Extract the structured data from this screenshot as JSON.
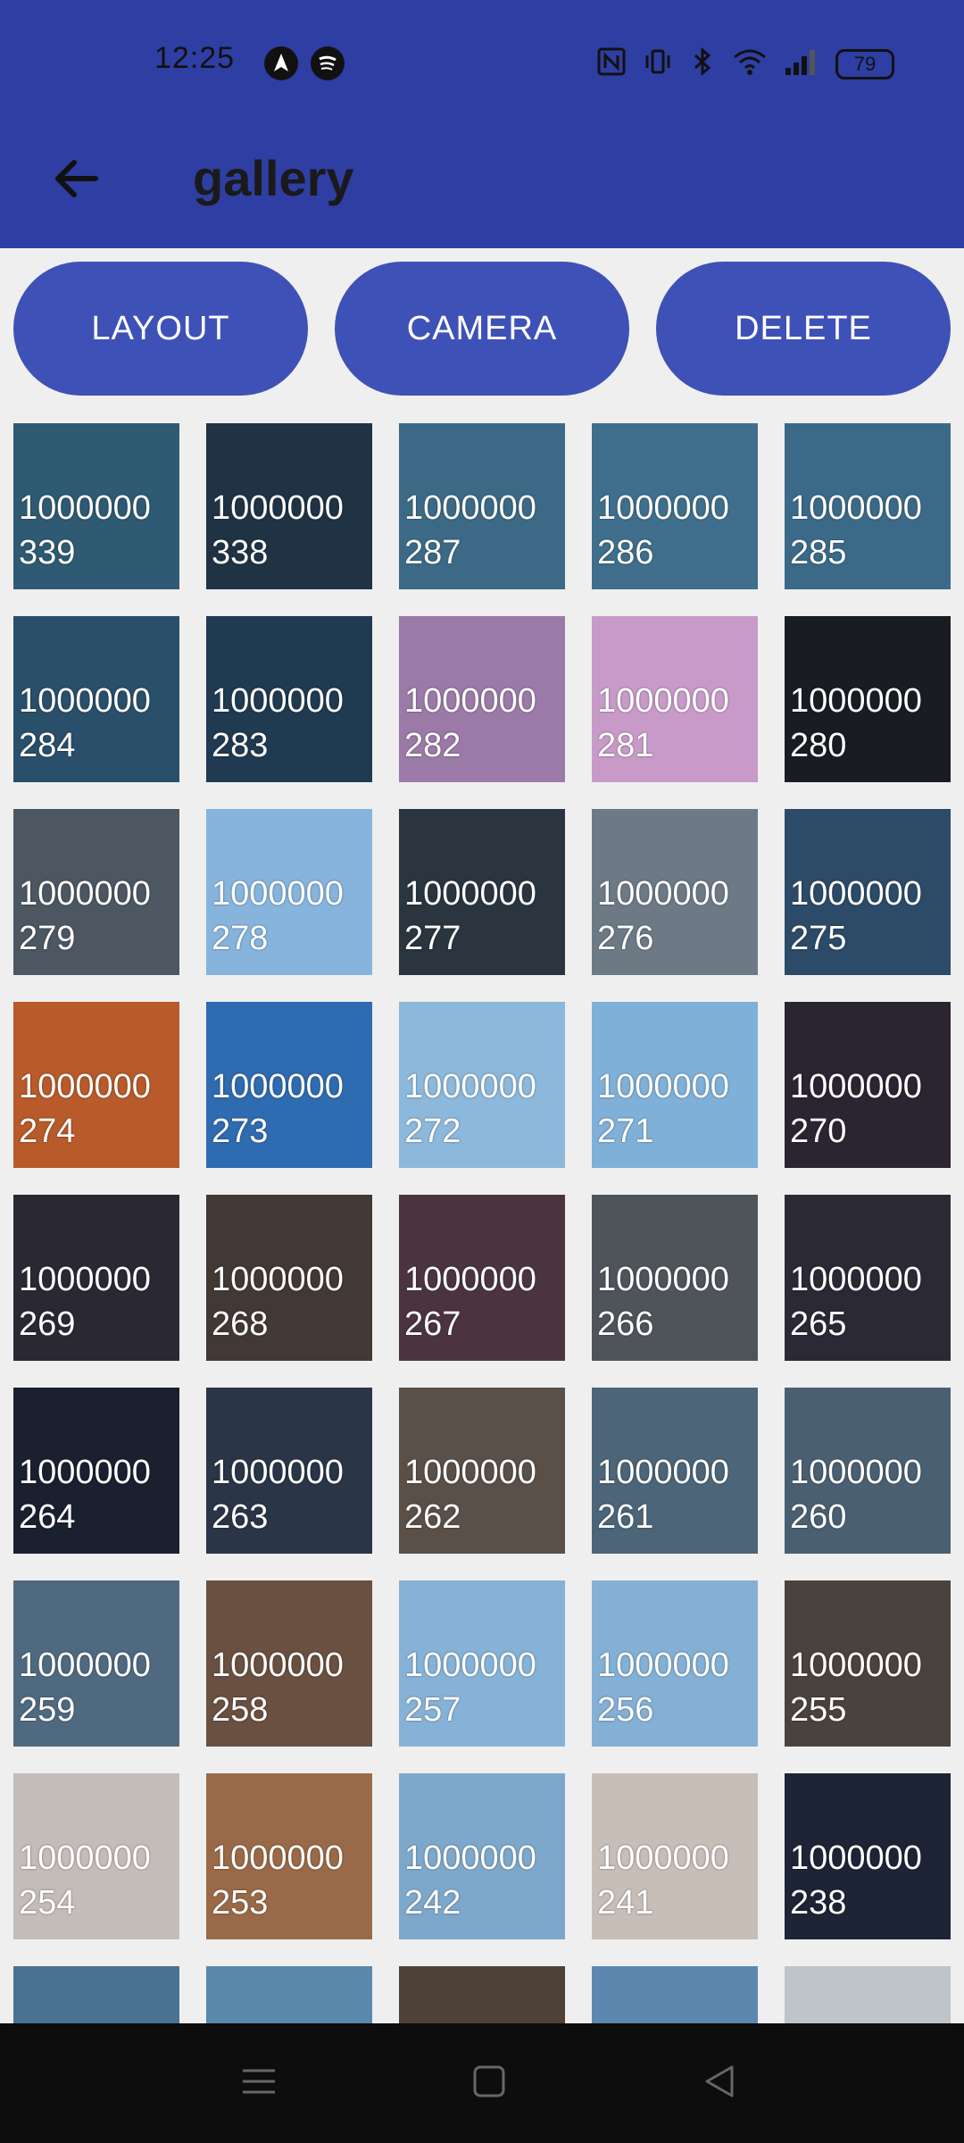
{
  "status_bar": {
    "time": "12:25",
    "battery": "79",
    "icons_left": [
      "navigation-app-icon",
      "spotify-icon"
    ],
    "icons_right": [
      "nfc-icon",
      "vibrate-icon",
      "bluetooth-icon",
      "wifi-icon",
      "signal-icon",
      "battery-icon"
    ]
  },
  "app_bar": {
    "title": "gallery",
    "back_icon": "arrow-left-icon",
    "color": "#2f3ea3"
  },
  "buttons": {
    "layout": "LAYOUT",
    "camera": "CAMERA",
    "delete": "DELETE",
    "color": "#3e51b6"
  },
  "gallery": {
    "items": [
      {
        "line1": "1000000",
        "line2": "339",
        "color": "#2f5a73"
      },
      {
        "line1": "1000000",
        "line2": "338",
        "color": "#1f3345"
      },
      {
        "line1": "1000000",
        "line2": "287",
        "color": "#3c6a86"
      },
      {
        "line1": "1000000",
        "line2": "286",
        "color": "#3f6f8c"
      },
      {
        "line1": "1000000",
        "line2": "285",
        "color": "#3b6a89"
      },
      {
        "line1": "1000000",
        "line2": "284",
        "color": "#2a4f6b"
      },
      {
        "line1": "1000000",
        "line2": "283",
        "color": "#203a52"
      },
      {
        "line1": "1000000",
        "line2": "282",
        "color": "#9c7aa8"
      },
      {
        "line1": "1000000",
        "line2": "281",
        "color": "#c89ac8"
      },
      {
        "line1": "1000000",
        "line2": "280",
        "color": "#1a1c24"
      },
      {
        "line1": "1000000",
        "line2": "279",
        "color": "#4d5761"
      },
      {
        "line1": "1000000",
        "line2": "278",
        "color": "#86b4dd"
      },
      {
        "line1": "1000000",
        "line2": "277",
        "color": "#2b3540"
      },
      {
        "line1": "1000000",
        "line2": "276",
        "color": "#6d7a86"
      },
      {
        "line1": "1000000",
        "line2": "275",
        "color": "#2c4b68"
      },
      {
        "line1": "1000000",
        "line2": "274",
        "color": "#b85a2a"
      },
      {
        "line1": "1000000",
        "line2": "273",
        "color": "#2f6bb0"
      },
      {
        "line1": "1000000",
        "line2": "272",
        "color": "#8cb8dc"
      },
      {
        "line1": "1000000",
        "line2": "271",
        "color": "#7fb0d8"
      },
      {
        "line1": "1000000",
        "line2": "270",
        "color": "#2a2530"
      },
      {
        "line1": "1000000",
        "line2": "269",
        "color": "#2a2833"
      },
      {
        "line1": "1000000",
        "line2": "268",
        "color": "#423834"
      },
      {
        "line1": "1000000",
        "line2": "267",
        "color": "#4b3440"
      },
      {
        "line1": "1000000",
        "line2": "266",
        "color": "#4e5459"
      },
      {
        "line1": "1000000",
        "line2": "265",
        "color": "#2b2935"
      },
      {
        "line1": "1000000",
        "line2": "264",
        "color": "#1b2030"
      },
      {
        "line1": "1000000",
        "line2": "263",
        "color": "#2a3548"
      },
      {
        "line1": "1000000",
        "line2": "262",
        "color": "#5a5048"
      },
      {
        "line1": "1000000",
        "line2": "261",
        "color": "#4c6578"
      },
      {
        "line1": "1000000",
        "line2": "260",
        "color": "#4a6072"
      },
      {
        "line1": "1000000",
        "line2": "259",
        "color": "#4f6a80"
      },
      {
        "line1": "1000000",
        "line2": "258",
        "color": "#6a5040"
      },
      {
        "line1": "1000000",
        "line2": "257",
        "color": "#86b2d8"
      },
      {
        "line1": "1000000",
        "line2": "256",
        "color": "#84b0d6"
      },
      {
        "line1": "1000000",
        "line2": "255",
        "color": "#4a423c"
      },
      {
        "line1": "1000000",
        "line2": "254",
        "color": "#c4bcb8"
      },
      {
        "line1": "1000000",
        "line2": "253",
        "color": "#9a6a48"
      },
      {
        "line1": "1000000",
        "line2": "242",
        "color": "#7da8cc"
      },
      {
        "line1": "1000000",
        "line2": "241",
        "color": "#c8beb8"
      },
      {
        "line1": "1000000",
        "line2": "238",
        "color": "#1c2436"
      },
      {
        "line1": "",
        "line2": "",
        "color": "#4a7190"
      },
      {
        "line1": "",
        "line2": "",
        "color": "#5a88ab"
      },
      {
        "line1": "",
        "line2": "",
        "color": "#4e4238"
      },
      {
        "line1": "",
        "line2": "",
        "color": "#5c88b0"
      },
      {
        "line1": "",
        "line2": "",
        "color": "#bfc4c8"
      }
    ]
  },
  "nav_bar": {
    "icons": [
      "menu-icon",
      "home-icon",
      "back-triangle-icon"
    ]
  }
}
